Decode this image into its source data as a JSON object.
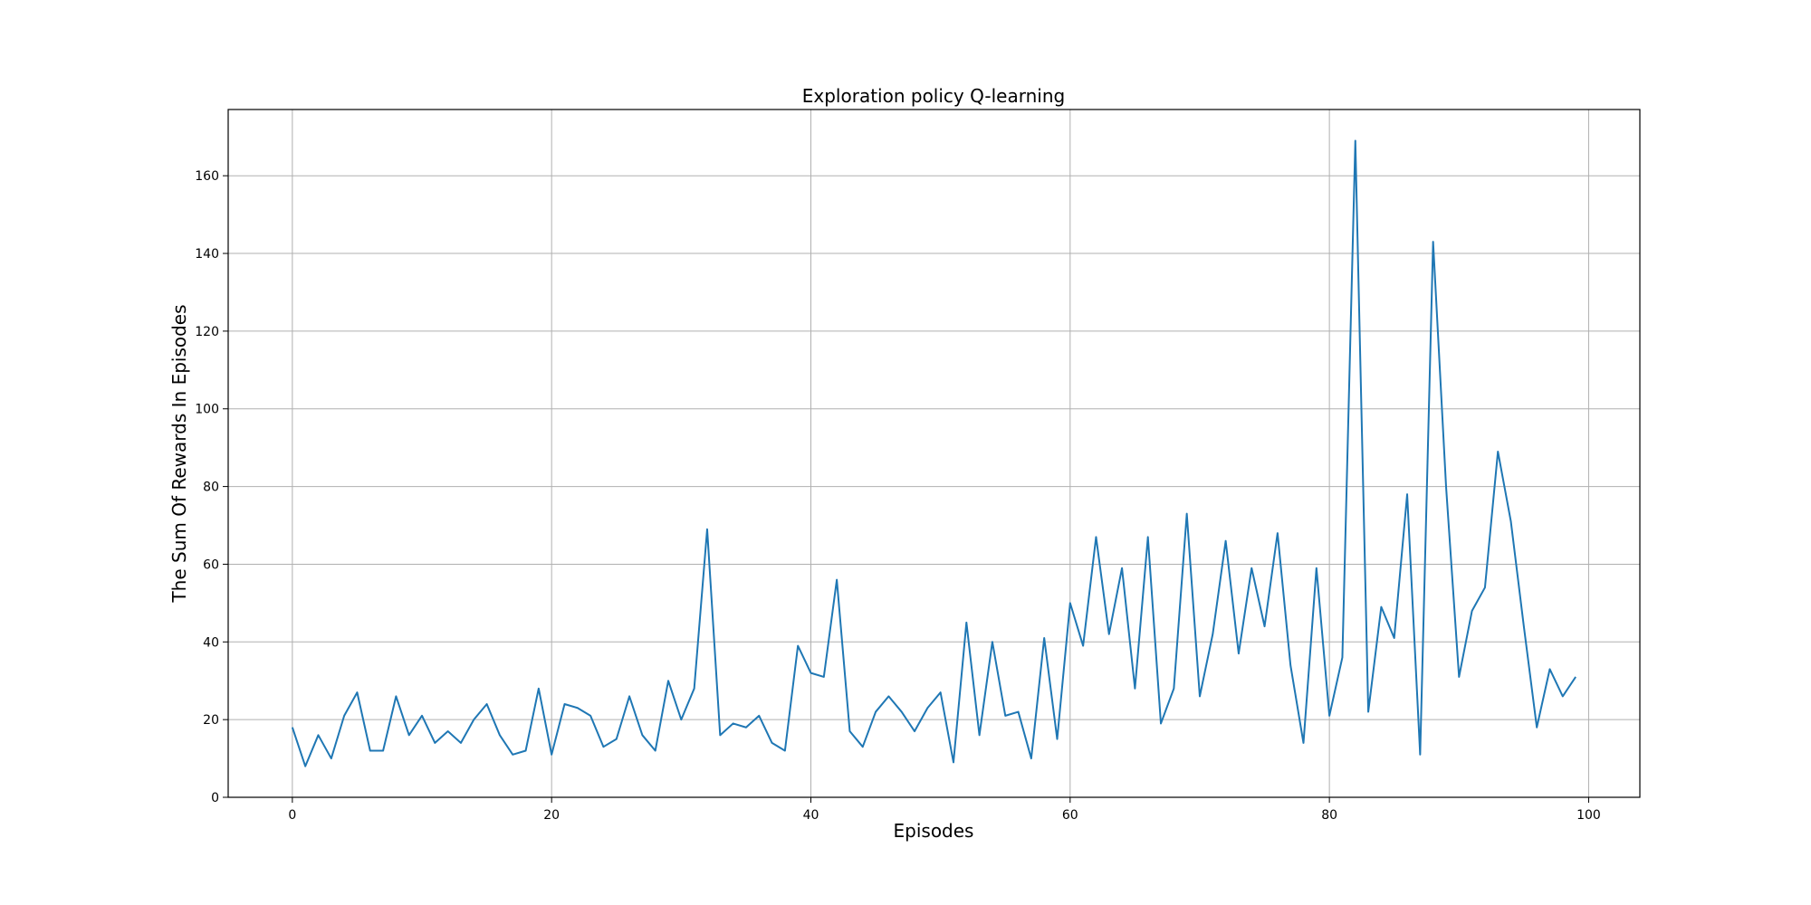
{
  "chart_data": {
    "type": "line",
    "title": "Exploration policy Q-learning",
    "xlabel": "Episodes",
    "ylabel": "The Sum Of Rewards In Episodes",
    "xlim": [
      -4.95,
      103.95
    ],
    "ylim": [
      0,
      177.05
    ],
    "xticks": [
      0,
      20,
      40,
      60,
      80,
      100
    ],
    "yticks": [
      0,
      20,
      40,
      60,
      80,
      100,
      120,
      140,
      160
    ],
    "grid": true,
    "line_color": "#1f77b4",
    "series": [
      {
        "x": [
          0,
          1,
          2,
          3,
          4,
          5,
          6,
          7,
          8,
          9,
          10,
          11,
          12,
          13,
          14,
          15,
          16,
          17,
          18,
          19,
          20,
          21,
          22,
          23,
          24,
          25,
          26,
          27,
          28,
          29,
          30,
          31,
          32,
          33,
          34,
          35,
          36,
          37,
          38,
          39,
          40,
          41,
          42,
          43,
          44,
          45,
          46,
          47,
          48,
          49,
          50,
          51,
          52,
          53,
          54,
          55,
          56,
          57,
          58,
          59,
          60,
          61,
          62,
          63,
          64,
          65,
          66,
          67,
          68,
          69,
          70,
          71,
          72,
          73,
          74,
          75,
          76,
          77,
          78,
          79,
          80,
          81,
          82,
          83,
          84,
          85,
          86,
          87,
          88,
          89,
          90,
          91,
          92,
          93,
          94,
          95,
          96,
          97,
          98,
          99
        ],
        "values": [
          18,
          8,
          16,
          10,
          21,
          27,
          12,
          12,
          26,
          16,
          21,
          14,
          17,
          14,
          20,
          24,
          16,
          11,
          12,
          28,
          11,
          24,
          23,
          21,
          13,
          15,
          26,
          16,
          12,
          30,
          20,
          28,
          69,
          16,
          19,
          18,
          21,
          14,
          12,
          39,
          32,
          31,
          56,
          17,
          13,
          22,
          26,
          22,
          17,
          23,
          27,
          9,
          45,
          16,
          40,
          21,
          22,
          10,
          41,
          15,
          50,
          39,
          67,
          42,
          59,
          28,
          67,
          19,
          28,
          73,
          26,
          42,
          66,
          37,
          59,
          44,
          68,
          34,
          14,
          59,
          21,
          36,
          169,
          22,
          49,
          41,
          78,
          11,
          143,
          80,
          31,
          48,
          54,
          89,
          71,
          44,
          18,
          33,
          26,
          31
        ]
      }
    ]
  }
}
